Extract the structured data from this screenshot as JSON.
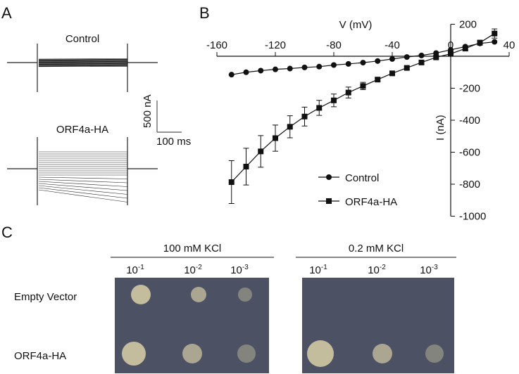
{
  "panels": {
    "a": {
      "letter": "A",
      "trace_labels": [
        "Control",
        "ORF4a-HA"
      ],
      "scale_y": "500 nA",
      "scale_x": "100 ms"
    },
    "b": {
      "letter": "B"
    },
    "c": {
      "letter": "C",
      "conditions": [
        "100 mM KCl",
        "0.2 mM KCl"
      ],
      "dilutions": [
        {
          "base": "10",
          "exp": "-1"
        },
        {
          "base": "10",
          "exp": "-2"
        },
        {
          "base": "10",
          "exp": "-3"
        }
      ],
      "rows": [
        "Empty Vector",
        "ORF4a-HA"
      ],
      "growth": {
        "100 mM KCl": {
          "Empty Vector": [
            "dense",
            "medium",
            "sparse"
          ],
          "ORF4a-HA": [
            "dense",
            "medium",
            "sparse"
          ]
        },
        "0.2 mM KCl": {
          "Empty Vector": [
            "none",
            "none",
            "none"
          ],
          "ORF4a-HA": [
            "dense",
            "medium",
            "sparse"
          ]
        }
      },
      "colors": {
        "plate": "#4c5163",
        "colony": "#c9c3a0"
      }
    }
  },
  "chart_data": {
    "type": "line",
    "xlabel": "V (mV)",
    "ylabel": "I (nA)",
    "xlim": [
      -160,
      40
    ],
    "ylim": [
      -1000,
      200
    ],
    "xticks": [
      -160,
      -120,
      -80,
      -40,
      0,
      40
    ],
    "yticks": [
      200,
      -200,
      -400,
      -600,
      -800,
      -1000
    ],
    "x": [
      -150,
      -140,
      -130,
      -120,
      -110,
      -100,
      -90,
      -80,
      -70,
      -60,
      -50,
      -40,
      -30,
      -20,
      -10,
      0,
      10,
      20,
      30
    ],
    "series": [
      {
        "name": "Control",
        "marker": "circle",
        "values": [
          -115,
          -100,
          -90,
          -82,
          -77,
          -70,
          -65,
          -55,
          -48,
          -40,
          -30,
          -17,
          -5,
          5,
          20,
          40,
          60,
          80,
          90
        ]
      },
      {
        "name": "ORF4a-HA",
        "marker": "square",
        "values": [
          -787,
          -690,
          -595,
          -512,
          -441,
          -377,
          -323,
          -276,
          -227,
          -186,
          -146,
          -107,
          -73,
          -39,
          -7,
          15,
          48,
          85,
          142
        ],
        "error": [
          134,
          115,
          99,
          82,
          69,
          59,
          47,
          40,
          34,
          23,
          10,
          8,
          8,
          8,
          8,
          8,
          10,
          15,
          29
        ]
      }
    ],
    "legend": "bottom-center",
    "grid": false
  }
}
